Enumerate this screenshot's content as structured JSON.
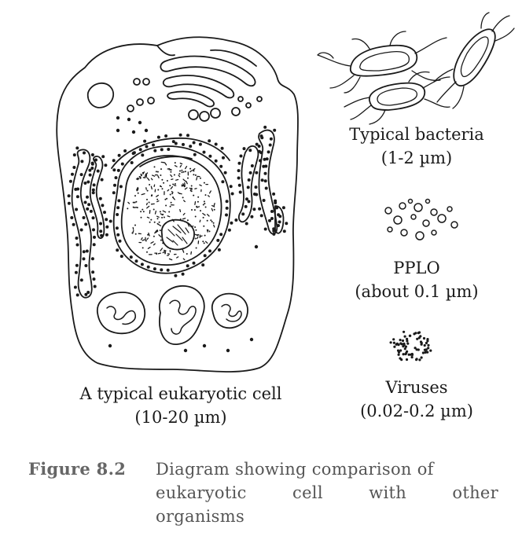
{
  "labels": {
    "cell_name": "A typical eukaryotic cell",
    "cell_size": "(10-20 µm)",
    "bacteria_name": "Typical bacteria",
    "bacteria_size": "(1-2 µm)",
    "pplo_name": "PPLO",
    "pplo_size": "(about 0.1 µm)",
    "virus_name": "Viruses",
    "virus_size": "(0.02-0.2 µm)"
  },
  "caption": {
    "figure": "Figure 8.2",
    "line1": "Diagram showing comparison of",
    "line2_words": [
      "eukaryotic",
      "cell",
      "with",
      "other"
    ],
    "line3": "organisms"
  },
  "colors": {
    "ink": "#1a1a1a",
    "caption_text": "#555555",
    "caption_key": "#666666",
    "background": "#ffffff"
  }
}
